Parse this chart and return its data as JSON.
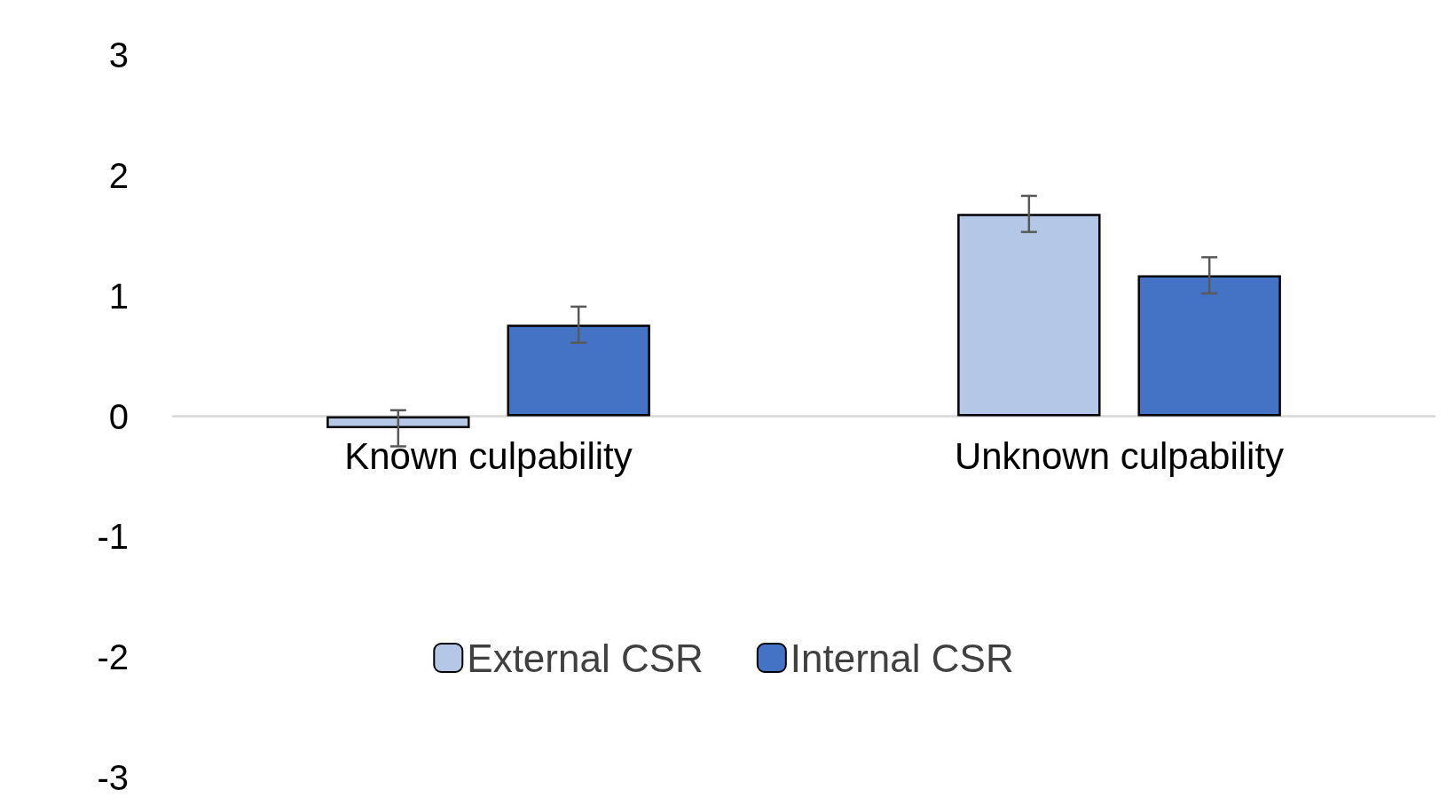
{
  "chart_data": {
    "type": "bar",
    "categories": [
      "Known culpability",
      "Unknown culpability"
    ],
    "series": [
      {
        "name": "External CSR",
        "color": "#b4c7e7",
        "values": [
          -0.1,
          1.68
        ],
        "errors": [
          0.15,
          0.15
        ]
      },
      {
        "name": "Internal CSR",
        "color": "#4472c4",
        "values": [
          0.76,
          1.17
        ],
        "errors": [
          0.15,
          0.15
        ]
      }
    ],
    "ylim": [
      -3,
      3
    ],
    "yticks": [
      -3,
      -2,
      -1,
      0,
      1,
      2,
      3
    ],
    "grid": false,
    "legend": "bottom"
  }
}
